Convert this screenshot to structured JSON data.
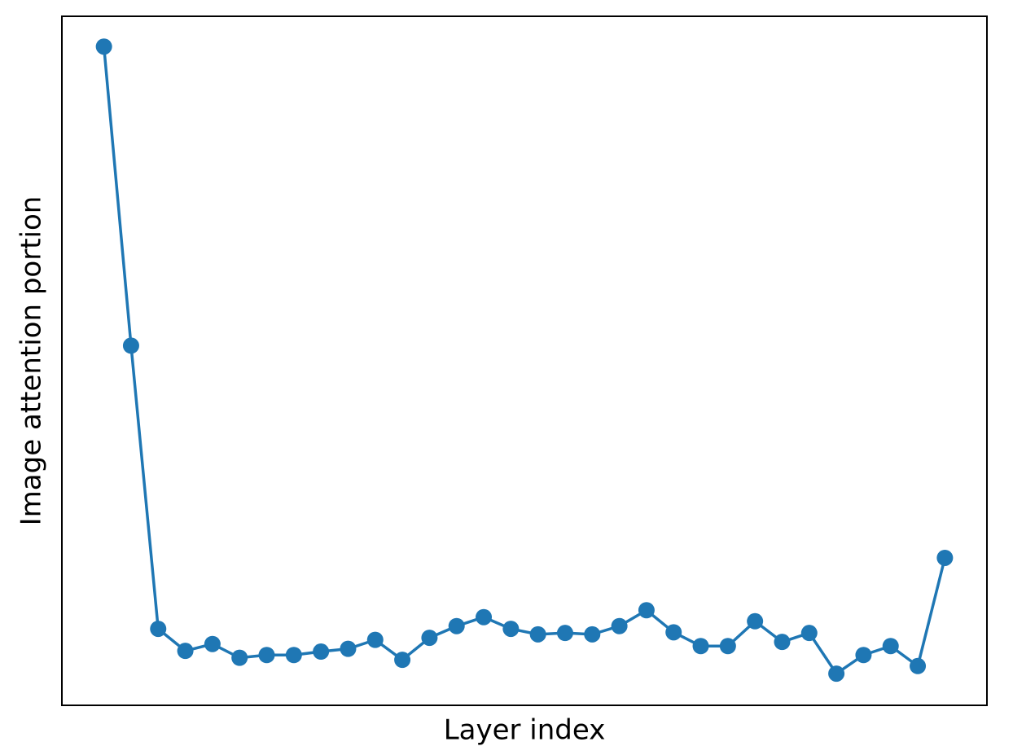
{
  "chart_data": {
    "type": "line",
    "xlabel": "Layer index",
    "ylabel": "Image attention portion",
    "x": [
      0,
      1,
      2,
      3,
      4,
      5,
      6,
      7,
      8,
      9,
      10,
      11,
      12,
      13,
      14,
      15,
      16,
      17,
      18,
      19,
      20,
      21,
      22,
      23,
      24,
      25,
      26,
      27,
      28,
      29,
      30,
      31
    ],
    "values": [
      0.956,
      0.522,
      0.111,
      0.079,
      0.089,
      0.069,
      0.073,
      0.073,
      0.078,
      0.082,
      0.095,
      0.066,
      0.098,
      0.115,
      0.128,
      0.111,
      0.103,
      0.105,
      0.103,
      0.115,
      0.138,
      0.106,
      0.086,
      0.086,
      0.122,
      0.092,
      0.105,
      0.046,
      0.073,
      0.086,
      0.057,
      0.214
    ],
    "color": "#1f77b4",
    "xlim": [
      -1.55,
      32.55
    ],
    "ylim": [
      0,
      1
    ],
    "markers": true,
    "grid": false
  }
}
